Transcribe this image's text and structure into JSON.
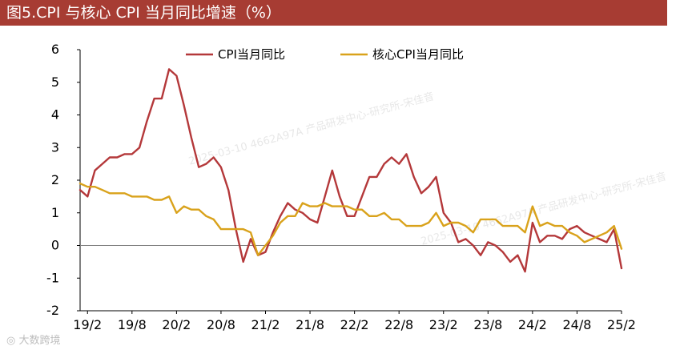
{
  "title": "图5.CPI 与核心 CPI 当月同比增速（%）",
  "watermarks": [
    "2025-03-10 4662A97A 产品研发中心-研究所-宋佳音",
    "大数跨境"
  ],
  "colors": {
    "title_bg": "#a73c33",
    "cpi": "#b4383a",
    "core_cpi": "#d9a21b"
  },
  "chart_data": {
    "type": "line",
    "ylim": [
      -2,
      6
    ],
    "yticks": [
      -2,
      -1,
      0,
      1,
      2,
      3,
      4,
      5,
      6
    ],
    "x_tick_labels": [
      "19/2",
      "19/8",
      "20/2",
      "20/8",
      "21/2",
      "21/8",
      "22/2",
      "22/8",
      "23/2",
      "23/8",
      "24/2",
      "24/8",
      "25/2"
    ],
    "legend": "top-center",
    "months": [
      "19/1",
      "19/2",
      "19/3",
      "19/4",
      "19/5",
      "19/6",
      "19/7",
      "19/8",
      "19/9",
      "19/10",
      "19/11",
      "19/12",
      "20/1",
      "20/2",
      "20/3",
      "20/4",
      "20/5",
      "20/6",
      "20/7",
      "20/8",
      "20/9",
      "20/10",
      "20/11",
      "20/12",
      "21/1",
      "21/2",
      "21/3",
      "21/4",
      "21/5",
      "21/6",
      "21/7",
      "21/8",
      "21/9",
      "21/10",
      "21/11",
      "21/12",
      "22/1",
      "22/2",
      "22/3",
      "22/4",
      "22/5",
      "22/6",
      "22/7",
      "22/8",
      "22/9",
      "22/10",
      "22/11",
      "22/12",
      "23/1",
      "23/2",
      "23/3",
      "23/4",
      "23/5",
      "23/6",
      "23/7",
      "23/8",
      "23/9",
      "23/10",
      "23/11",
      "23/12",
      "24/1",
      "24/2",
      "24/3",
      "24/4",
      "24/5",
      "24/6",
      "24/7",
      "24/8",
      "24/9",
      "24/10",
      "24/11",
      "24/12",
      "25/1",
      "25/2"
    ],
    "series": [
      {
        "name": "CPI当月同比",
        "color": "#b4383a",
        "values": [
          1.7,
          1.5,
          2.3,
          2.5,
          2.7,
          2.7,
          2.8,
          2.8,
          3.0,
          3.8,
          4.5,
          4.5,
          5.4,
          5.2,
          4.3,
          3.3,
          2.4,
          2.5,
          2.7,
          2.4,
          1.7,
          0.5,
          -0.5,
          0.2,
          -0.3,
          -0.2,
          0.4,
          0.9,
          1.3,
          1.1,
          1.0,
          0.8,
          0.7,
          1.5,
          2.3,
          1.5,
          0.9,
          0.9,
          1.5,
          2.1,
          2.1,
          2.5,
          2.7,
          2.5,
          2.8,
          2.1,
          1.6,
          1.8,
          2.1,
          1.0,
          0.7,
          0.1,
          0.2,
          0.0,
          -0.3,
          0.1,
          0.0,
          -0.2,
          -0.5,
          -0.3,
          -0.8,
          0.7,
          0.1,
          0.3,
          0.3,
          0.2,
          0.5,
          0.6,
          0.4,
          0.3,
          0.2,
          0.1,
          0.5,
          -0.7
        ]
      },
      {
        "name": "核心CPI当月同比",
        "color": "#d9a21b",
        "values": [
          1.9,
          1.8,
          1.8,
          1.7,
          1.6,
          1.6,
          1.6,
          1.5,
          1.5,
          1.5,
          1.4,
          1.4,
          1.5,
          1.0,
          1.2,
          1.1,
          1.1,
          0.9,
          0.8,
          0.5,
          0.5,
          0.5,
          0.5,
          0.4,
          -0.3,
          0.0,
          0.3,
          0.7,
          0.9,
          0.9,
          1.3,
          1.2,
          1.2,
          1.3,
          1.2,
          1.2,
          1.2,
          1.1,
          1.1,
          0.9,
          0.9,
          1.0,
          0.8,
          0.8,
          0.6,
          0.6,
          0.6,
          0.7,
          1.0,
          0.6,
          0.7,
          0.7,
          0.6,
          0.4,
          0.8,
          0.8,
          0.8,
          0.6,
          0.6,
          0.6,
          0.4,
          1.2,
          0.6,
          0.7,
          0.6,
          0.6,
          0.4,
          0.3,
          0.1,
          0.2,
          0.3,
          0.4,
          0.6,
          -0.1
        ]
      }
    ]
  }
}
